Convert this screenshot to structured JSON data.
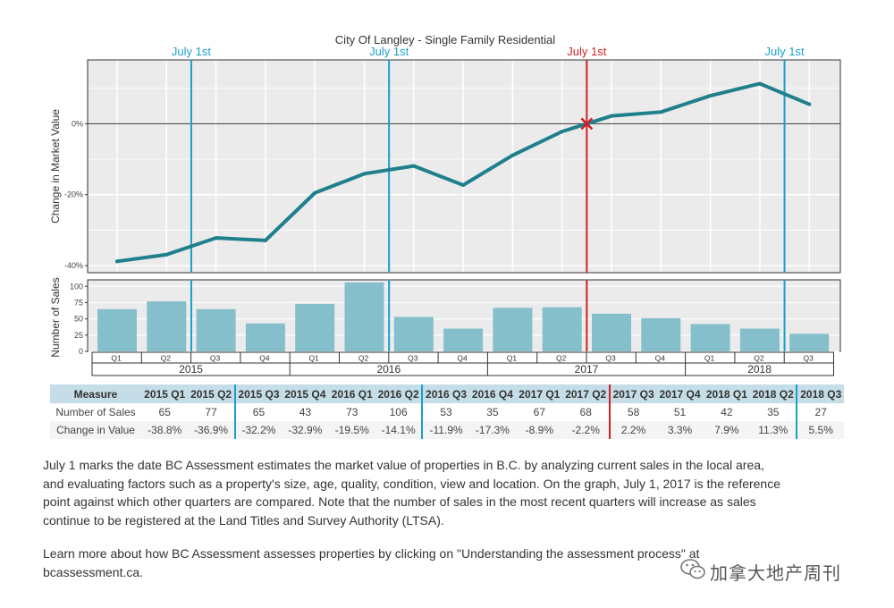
{
  "chart_data": {
    "type": "line",
    "title": "City Of Langley - Single Family Residential",
    "ylabel": "Change in Market Value",
    "y_ticks": [
      "0%",
      "-20%",
      "-40%"
    ],
    "y_tick_values": [
      0,
      -20,
      -40
    ],
    "ylim": [
      -42,
      18
    ],
    "x": [
      "2015 Q1",
      "2015 Q2",
      "2015 Q3",
      "2015 Q4",
      "2016 Q1",
      "2016 Q2",
      "2016 Q3",
      "2016 Q4",
      "2017 Q1",
      "2017 Q2",
      "2017 Q3",
      "2017 Q4",
      "2018 Q1",
      "2018 Q2",
      "2018 Q3"
    ],
    "values": [
      -38.8,
      -36.9,
      -32.2,
      -32.9,
      -19.5,
      -14.1,
      -11.9,
      -17.3,
      -8.9,
      -2.2,
      2.2,
      3.3,
      7.9,
      11.3,
      5.5
    ],
    "line_color": "#1f7f8c",
    "reference_marker": {
      "x": 9.5,
      "y": 0,
      "symbol": "x",
      "color": "#d21f26"
    },
    "vlines": [
      {
        "x": 1.5,
        "label": "July 1st",
        "color": "#1a9fc9"
      },
      {
        "x": 5.5,
        "label": "July 1st",
        "color": "#1a9fc9"
      },
      {
        "x": 9.5,
        "label": "July 1st",
        "color": "#d21f26"
      },
      {
        "x": 13.5,
        "label": "July 1st",
        "color": "#1a9fc9"
      }
    ],
    "grid": true,
    "sales": {
      "type": "bar",
      "ylabel": "Number of Sales",
      "y_ticks": [
        "100",
        "75",
        "50",
        "25",
        "0"
      ],
      "y_tick_values": [
        100,
        75,
        50,
        25,
        0
      ],
      "ylim": [
        0,
        110
      ],
      "values": [
        65,
        77,
        65,
        43,
        73,
        106,
        53,
        35,
        67,
        68,
        58,
        51,
        42,
        35,
        27
      ],
      "bar_color": "#85bfcc",
      "quarter_labels": [
        "Q1",
        "Q2",
        "Q3",
        "Q4",
        "Q1",
        "Q2",
        "Q3",
        "Q4",
        "Q1",
        "Q2",
        "Q3",
        "Q4",
        "Q1",
        "Q2",
        "Q3"
      ],
      "years": [
        {
          "label": "2015",
          "start": 0,
          "end": 4
        },
        {
          "label": "2016",
          "start": 4,
          "end": 8
        },
        {
          "label": "2017",
          "start": 8,
          "end": 12
        },
        {
          "label": "2018",
          "start": 12,
          "end": 15
        }
      ]
    }
  },
  "table": {
    "header_label": "Measure",
    "columns": [
      "2015 Q1",
      "2015 Q2",
      "2015 Q3",
      "2015 Q4",
      "2016 Q1",
      "2016 Q2",
      "2016 Q3",
      "2016 Q4",
      "2017 Q1",
      "2017 Q2",
      "2017 Q3",
      "2017 Q4",
      "2018 Q1",
      "2018 Q2",
      "2018 Q3"
    ],
    "rows": [
      {
        "label": "Number of Sales",
        "values": [
          "65",
          "77",
          "65",
          "43",
          "73",
          "106",
          "53",
          "35",
          "67",
          "68",
          "58",
          "51",
          "42",
          "35",
          "27"
        ]
      },
      {
        "label": "Change in Value",
        "values": [
          "-38.8%",
          "-36.9%",
          "-32.2%",
          "-32.9%",
          "-19.5%",
          "-14.1%",
          "-11.9%",
          "-17.3%",
          "-8.9%",
          "-2.2%",
          "2.2%",
          "3.3%",
          "7.9%",
          "11.3%",
          "5.5%"
        ]
      }
    ]
  },
  "text": {
    "paragraph1": "July 1 marks the date BC Assessment estimates the market value of properties in B.C. by analyzing current sales in the local area, and evaluating factors such as a property's size, age, quality, condition, view and location. On the graph, July 1, 2017 is the reference point against which other quarters are compared. Note that the number of sales in the most recent quarters will increase as sales continue to be registered at the Land Titles and Survey Authority (LTSA).",
    "paragraph2": "Learn more about how BC Assessment assesses properties by clicking on \"Understanding the assessment process\" at bcassessment.ca."
  },
  "watermark": {
    "icon": "wechat-icon",
    "text": "加拿大地产周刊"
  }
}
